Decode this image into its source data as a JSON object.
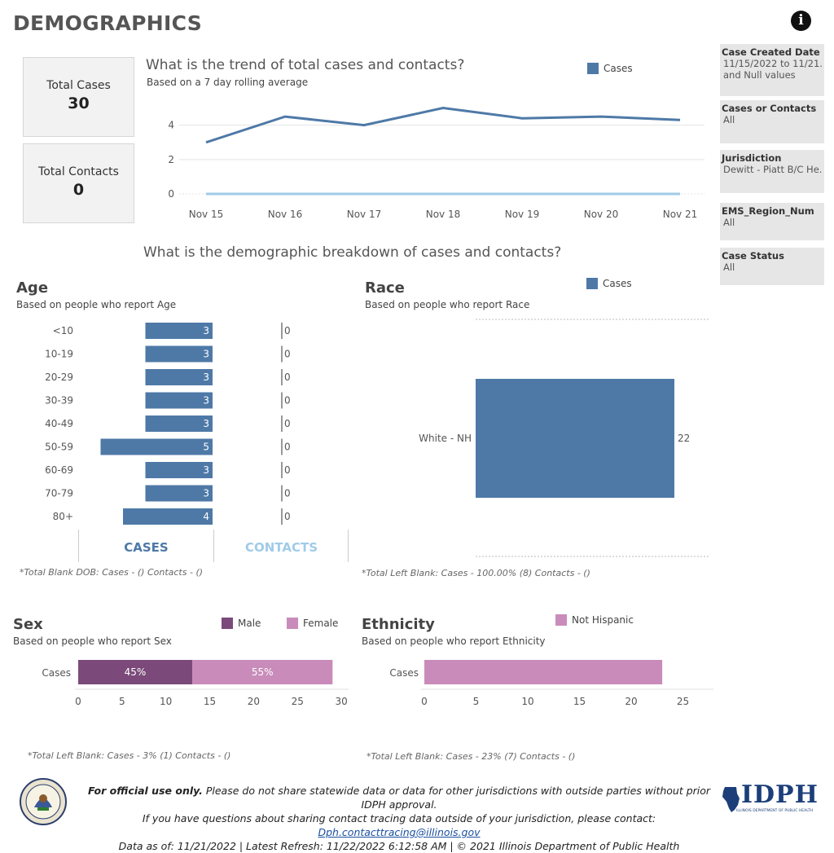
{
  "page": {
    "title": "DEMOGRAPHICS"
  },
  "icons": {
    "info": "info-icon",
    "state_seal": "illinois-seal-icon",
    "idph_logo": "idph-logo"
  },
  "colors": {
    "cases": "#4e79a7",
    "contacts": "#a0cbe8",
    "male": "#7b4a7a",
    "female": "#c98cba"
  },
  "kpis": {
    "total_cases_label": "Total Cases",
    "total_cases_value": "30",
    "total_contacts_label": "Total Contacts",
    "total_contacts_value": "0"
  },
  "trend": {
    "title": "What is the trend of total cases and contacts?",
    "subtitle": "Based on a 7 day rolling average",
    "legend": "Cases"
  },
  "demographic_heading": "What is the demographic breakdown of cases and contacts?",
  "age": {
    "title": "Age",
    "subtitle": "Based on people who report Age",
    "tab_cases": "CASES",
    "tab_contacts": "CONTACTS",
    "note": "*Total Blank DOB: Cases -  () Contacts -  ()"
  },
  "race": {
    "title": "Race",
    "subtitle": "Based on people who report Race",
    "legend": "Cases",
    "note": "*Total Left Blank: Cases - 100.00% (8) Contacts -  ()"
  },
  "sex": {
    "title": "Sex",
    "subtitle": "Based on people who report Sex",
    "legend_male": "Male",
    "legend_female": "Female",
    "note": "*Total Left Blank: Cases - 3% (1) Contacts -  ()"
  },
  "ethnicity": {
    "title": "Ethnicity",
    "subtitle": "Based on people who report Ethnicity",
    "legend": "Not Hispanic",
    "note": "*Total Left Blank: Cases - 23% (7) Contacts -  ()"
  },
  "filters": [
    {
      "label": "Case Created Date",
      "value": "11/15/2022 to 11/21...",
      "value2": "and Null values"
    },
    {
      "label": "Cases or Contacts",
      "value": "All"
    },
    {
      "label": "Jurisdiction",
      "value": "Dewitt - Piatt B/C He..."
    },
    {
      "label": "EMS_Region_Num",
      "value": "All"
    },
    {
      "label": "Case Status",
      "value": "All"
    }
  ],
  "footer": {
    "bold": "For official use only.",
    "line1": " Please do not share statewide data or data for other jurisdictions with outside parties without prior IDPH approval.",
    "line2": "If you have questions about sharing contact tracing data outside of your jurisdiction, please contact: ",
    "email": "Dph.contacttracing@illinois.gov",
    "line3": "Data as of: 11/21/2022  |  Latest Refresh: 11/22/2022 6:12:58 AM  |  © 2021 Illinois Department of Public Health",
    "logo_text": "IDPH",
    "logo_subtext": "ILLINOIS DEPARTMENT OF PUBLIC HEALTH"
  },
  "chart_data": [
    {
      "type": "line",
      "title": "What is the trend of total cases and contacts?",
      "x": [
        "Nov 15",
        "Nov 16",
        "Nov 17",
        "Nov 18",
        "Nov 19",
        "Nov 20",
        "Nov 21"
      ],
      "series": [
        {
          "name": "Cases",
          "values": [
            3.0,
            4.5,
            4.0,
            5.0,
            4.4,
            4.5,
            4.3
          ]
        },
        {
          "values": [
            0,
            0,
            0,
            0,
            0,
            0,
            0
          ]
        }
      ],
      "yticks": [
        0,
        2,
        4
      ],
      "ylim": [
        0,
        5.5
      ],
      "grid": true,
      "legend": "top-right"
    },
    {
      "type": "bar",
      "title": "Age",
      "categories": [
        "<10",
        "10-19",
        "20-29",
        "30-39",
        "40-49",
        "50-59",
        "60-69",
        "70-79",
        "80+"
      ],
      "series": [
        {
          "name": "CASES",
          "values": [
            3,
            3,
            3,
            3,
            3,
            5,
            3,
            3,
            4
          ]
        },
        {
          "name": "CONTACTS",
          "values": [
            0,
            0,
            0,
            0,
            0,
            0,
            0,
            0,
            0
          ]
        }
      ]
    },
    {
      "type": "bar",
      "title": "Race",
      "categories": [
        "White - NH"
      ],
      "series": [
        {
          "name": "Cases",
          "values": [
            22
          ]
        }
      ],
      "legend": "top-right"
    },
    {
      "type": "bar",
      "title": "Sex",
      "categories": [
        "Cases"
      ],
      "series": [
        {
          "name": "Male",
          "values": [
            13
          ],
          "label": "45%"
        },
        {
          "name": "Female",
          "values": [
            16
          ],
          "label": "55%"
        }
      ],
      "xticks": [
        0,
        5,
        10,
        15,
        20,
        25,
        30
      ],
      "xlim": [
        0,
        31
      ],
      "legend": "top-right"
    },
    {
      "type": "bar",
      "title": "Ethnicity",
      "categories": [
        "Cases"
      ],
      "series": [
        {
          "name": "Not Hispanic",
          "values": [
            23
          ]
        }
      ],
      "xticks": [
        0,
        5,
        10,
        15,
        20,
        25
      ],
      "xlim": [
        0,
        28
      ],
      "legend": "top-right"
    }
  ]
}
